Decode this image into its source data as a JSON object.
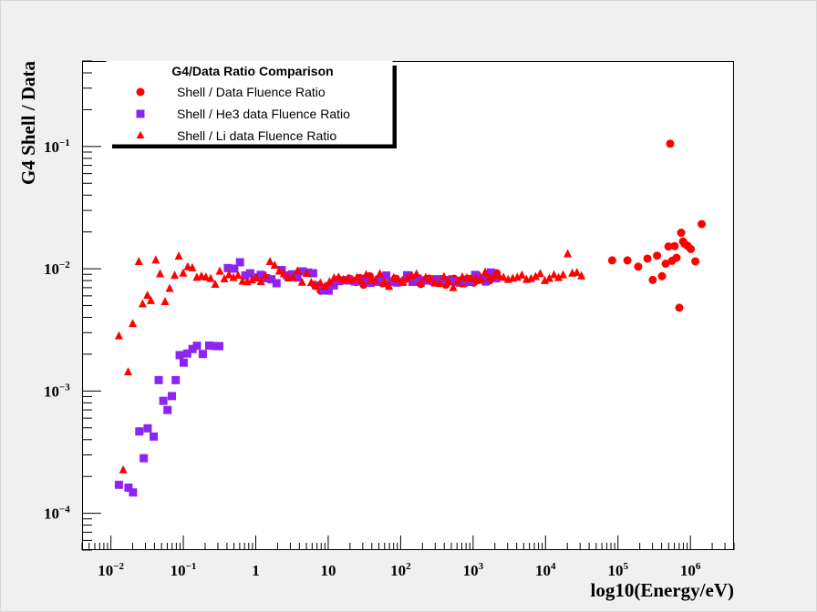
{
  "chart_data": {
    "type": "scatter",
    "title": "",
    "xlabel": "log10(Energy/eV)",
    "ylabel": "G4 Shell / Data",
    "x_scale": "log",
    "y_scale": "log",
    "xlim": [
      0.004,
      4000000
    ],
    "ylim": [
      5e-05,
      0.5
    ],
    "grid": false,
    "x_ticks": [
      {
        "value": 0.01,
        "base": "10",
        "exp": "−2"
      },
      {
        "value": 0.1,
        "base": "10",
        "exp": "−1"
      },
      {
        "value": 1,
        "base": "1",
        "exp": ""
      },
      {
        "value": 10,
        "base": "10",
        "exp": ""
      },
      {
        "value": 100,
        "base": "10",
        "exp": "2"
      },
      {
        "value": 1000,
        "base": "10",
        "exp": "3"
      },
      {
        "value": 10000,
        "base": "10",
        "exp": "4"
      },
      {
        "value": 100000,
        "base": "10",
        "exp": "5"
      },
      {
        "value": 1000000,
        "base": "10",
        "exp": "6"
      }
    ],
    "y_ticks": [
      {
        "value": 0.0001,
        "base": "10",
        "exp": "−4"
      },
      {
        "value": 0.001,
        "base": "10",
        "exp": "−3"
      },
      {
        "value": 0.01,
        "base": "10",
        "exp": "−2"
      },
      {
        "value": 0.1,
        "base": "10",
        "exp": "−1"
      }
    ],
    "legend": {
      "title": "G4/Data Ratio Comparison",
      "position": "top-left"
    },
    "series": [
      {
        "name": "Shell / Data Fluence Ratio",
        "marker": "circle",
        "color": "#ff0000",
        "x": [
          6.5,
          7.9,
          9.7,
          11.6,
          13.9,
          16.8,
          19.7,
          21.5,
          24.2,
          27.4,
          30.8,
          37.4,
          48,
          56.1,
          65.8,
          83.8,
          91.5,
          114.7,
          135.2,
          161.6,
          189.5,
          248.4,
          281.5,
          351.9,
          421.4,
          480.2,
          545.6,
          606.3,
          644.1,
          690.1,
          765.5,
          803.7,
          836.4,
          903.6,
          957.8,
          1014.2,
          1063.7,
          1141.2,
          1207.8,
          1409.1,
          1683.3,
          1889.1,
          2111.7,
          83138.5,
          135159.9,
          190244.9,
          255006.6,
          301958.7,
          346301.9,
          405233.3,
          455856.3,
          497493.2,
          525646.9,
          557151.9,
          605002.9,
          643302.7,
          702718.2,
          744997.3,
          790999.2,
          830854.9,
          915493.2,
          1012014.2,
          1170124.9,
          1429283.9
        ],
        "y": [
          0.0074,
          0.0066,
          0.0072,
          0.0076,
          0.0082,
          0.0081,
          0.0083,
          0.008,
          0.0078,
          0.0084,
          0.0074,
          0.0087,
          0.0082,
          0.0076,
          0.0075,
          0.0083,
          0.0077,
          0.0082,
          0.0084,
          0.0078,
          0.0075,
          0.0083,
          0.0082,
          0.0079,
          0.0074,
          0.0082,
          0.0083,
          0.0077,
          0.0079,
          0.0076,
          0.0076,
          0.0078,
          0.0083,
          0.0082,
          0.0078,
          0.0077,
          0.0079,
          0.0089,
          0.0081,
          0.0085,
          0.008,
          0.0086,
          0.0092,
          0.0117,
          0.0117,
          0.0104,
          0.0121,
          0.0081,
          0.0128,
          0.0087,
          0.011,
          0.0152,
          0.1054,
          0.0116,
          0.0153,
          0.0123,
          0.0048,
          0.0197,
          0.0167,
          0.016,
          0.0154,
          0.0145,
          0.0115,
          0.0232
        ]
      },
      {
        "name": "Shell / He3 data Fluence Ratio",
        "marker": "square",
        "color": "#8e24ef",
        "x": [
          0.0129,
          0.0175,
          0.0202,
          0.0247,
          0.0284,
          0.0322,
          0.039,
          0.0457,
          0.053,
          0.0605,
          0.0695,
          0.0785,
          0.0891,
          0.1011,
          0.1132,
          0.1339,
          0.1542,
          0.1858,
          0.2276,
          0.2712,
          0.3132,
          0.4119,
          0.5038,
          0.6051,
          0.7161,
          0.8372,
          0.9877,
          1.1694,
          1.3957,
          1.6416,
          1.9337,
          2.2815,
          2.6945,
          3.1857,
          3.7575,
          4.4355,
          5.2377,
          6.1876,
          7.2857,
          8.6057,
          10.1453,
          11.9828,
          14.1541,
          16.7126,
          19.7373,
          23.3194,
          27.5232,
          32.5063,
          38.3977,
          45.3264,
          53.5345,
          63.2215,
          74.6562,
          88.1651,
          104.0824,
          122.9349,
          145.2283,
          171.4788,
          202.5059,
          239.2271,
          282.4829,
          333.6248,
          394.0075,
          465.2997,
          549.4981,
          648.9302,
          766.3728,
          905.1083,
          1068.9028,
          1262.3569,
          1490.7808,
          1760.6305,
          2079.6278
        ],
        "y": [
          0.000171,
          0.000162,
          0.000148,
          0.000467,
          0.000282,
          0.000495,
          0.000424,
          0.001228,
          0.000831,
          0.000699,
          0.000909,
          0.001227,
          0.001965,
          0.001706,
          0.002026,
          0.002204,
          0.002345,
          0.002007,
          0.002353,
          0.002332,
          0.002327,
          0.010125,
          0.010018,
          0.011301,
          0.008813,
          0.009183,
          0.008477,
          0.008914,
          0.008364,
          0.008203,
          0.007609,
          0.009753,
          0.008828,
          0.009004,
          0.008472,
          0.009522,
          0.009317,
          0.009193,
          0.007262,
          0.006647,
          0.006623,
          0.007303,
          0.007915,
          0.008034,
          0.008004,
          0.00786,
          0.007904,
          0.008279,
          0.007682,
          0.007824,
          0.008193,
          0.008802,
          0.007844,
          0.007713,
          0.007791,
          0.008845,
          0.007823,
          0.008315,
          0.008049,
          0.008004,
          0.007913,
          0.008209,
          0.008062,
          0.00802,
          0.00789,
          0.007961,
          0.008053,
          0.007808,
          0.008898,
          0.008309,
          0.007871,
          0.009324,
          0.008362
        ]
      },
      {
        "name": "Shell / Li data Fluence Ratio",
        "marker": "triangle",
        "color": "#ff0000",
        "x": [
          0.0129,
          0.0148,
          0.0173,
          0.02,
          0.0243,
          0.0274,
          0.0319,
          0.0356,
          0.0416,
          0.0478,
          0.0558,
          0.0647,
          0.0758,
          0.0865,
          0.0994,
          0.1152,
          0.1332,
          0.1536,
          0.1778,
          0.2052,
          0.2384,
          0.2755,
          0.3186,
          0.3677,
          0.4257,
          0.4903,
          0.5685,
          0.6562,
          0.7615,
          0.8829,
          1.0167,
          1.1745,
          1.3603,
          1.5709,
          1.8233,
          2.1077,
          2.4405,
          2.8179,
          3.2581,
          3.7683,
          4.3586,
          5.0396,
          5.8252,
          6.7377,
          7.7926,
          9.0163,
          10.4206,
          12.0511,
          13.9431,
          16.1285,
          18.6574,
          21.5804,
          24.9546,
          28.8599,
          33.3822,
          38.5998,
          44.6545,
          51.6587,
          59.7532,
          69.1061,
          79.9386,
          92.4538,
          106.9431,
          123.7167,
          143.1227,
          165.5344,
          191.4763,
          221.5251,
          256.2325,
          296.4111,
          342.8813,
          396.6258,
          458.814,
          530.7472,
          613.9566,
          710.2153,
          821.3859,
          950.0837,
          1099.0168,
          1271.2883,
          1470.5839,
          1701.0893,
          1967.8233,
          2276.238,
          2633.0558,
          3045.9152,
          3523.5064,
          4075.9788,
          4715.2028,
          5454.1795,
          6310.9425,
          7298.9831,
          8444.2002,
          9767.8913,
          11300.4014,
          13072.5373,
          15121.7722,
          17499.8016,
          20237.2069,
          23414.6315,
          27091.7416,
          31338.6008
        ],
        "y": [
          0.00283,
          0.000227,
          0.00144,
          0.00357,
          0.0115,
          0.00518,
          0.00608,
          0.00551,
          0.0118,
          0.00912,
          0.0054,
          0.00692,
          0.00887,
          0.0127,
          0.00923,
          0.0104,
          0.0102,
          0.00852,
          0.00873,
          0.00858,
          0.00834,
          0.00749,
          0.00957,
          0.0083,
          0.00896,
          0.00849,
          0.00887,
          0.00793,
          0.00784,
          0.00811,
          0.00843,
          0.00788,
          0.00883,
          0.0115,
          0.0107,
          0.0096,
          0.00913,
          0.00843,
          0.00855,
          0.00964,
          0.00777,
          0.00919,
          0.00775,
          0.00725,
          0.00768,
          0.00723,
          0.00786,
          0.00843,
          0.00856,
          0.00818,
          0.00837,
          0.00813,
          0.00853,
          0.00795,
          0.00897,
          0.00823,
          0.00805,
          0.00914,
          0.00783,
          0.0072,
          0.00848,
          0.00825,
          0.00784,
          0.00843,
          0.00883,
          0.00909,
          0.00767,
          0.00852,
          0.00824,
          0.00766,
          0.00759,
          0.00864,
          0.00795,
          0.00703,
          0.00798,
          0.00861,
          0.00844,
          0.00838,
          0.00834,
          0.00822,
          0.00942,
          0.00846,
          0.00882,
          0.00882,
          0.00852,
          0.00821,
          0.00839,
          0.00855,
          0.00891,
          0.00821,
          0.00833,
          0.00865,
          0.00915,
          0.00803,
          0.00837,
          0.00895,
          0.00849,
          0.00894,
          0.0133,
          0.00923,
          0.00934,
          0.00876
        ]
      }
    ]
  }
}
